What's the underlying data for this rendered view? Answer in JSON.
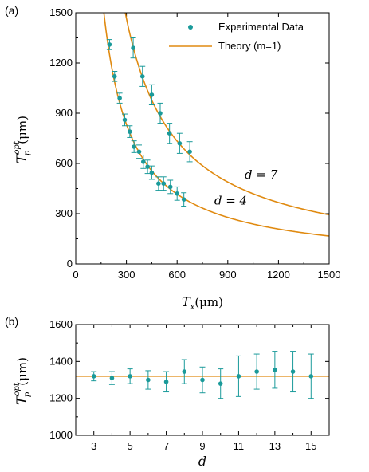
{
  "chart_data": [
    {
      "panel_label": "(a)",
      "type": "scatter",
      "xlabel_main": "T",
      "xlabel_sub": "x",
      "xlabel_unit": "(μm)",
      "ylabel_main": "T",
      "ylabel_sub": "p",
      "ylabel_sup": "opt",
      "ylabel_unit": "(μm)",
      "xlim": [
        0,
        1500
      ],
      "ylim": [
        0,
        1500
      ],
      "xticks": [
        "0",
        "300",
        "600",
        "900",
        "1200",
        "1500"
      ],
      "yticks": [
        "0",
        "300",
        "600",
        "900",
        "1200",
        "1500"
      ],
      "legend_position": "top-right",
      "legend": {
        "data_label": "Experimental  Data",
        "theory_label": "Theory (m=1)"
      },
      "colors": {
        "data": "#1a9a9a",
        "theory": "#e08a10"
      },
      "annotations": [
        {
          "text": "d = 7",
          "x": 1000,
          "y": 510
        },
        {
          "text": "d = 4",
          "x": 820,
          "y": 355
        }
      ],
      "series": [
        {
          "name": "d = 4",
          "theory_constant": 250000,
          "points": [
            {
              "x": 200,
              "y": 1310,
              "err": 30
            },
            {
              "x": 230,
              "y": 1120,
              "err": 30
            },
            {
              "x": 260,
              "y": 990,
              "err": 30
            },
            {
              "x": 290,
              "y": 860,
              "err": 35
            },
            {
              "x": 320,
              "y": 790,
              "err": 35
            },
            {
              "x": 345,
              "y": 700,
              "err": 35
            },
            {
              "x": 375,
              "y": 670,
              "err": 40
            },
            {
              "x": 400,
              "y": 610,
              "err": 40
            },
            {
              "x": 425,
              "y": 580,
              "err": 40
            },
            {
              "x": 450,
              "y": 545,
              "err": 40
            },
            {
              "x": 490,
              "y": 480,
              "err": 40
            },
            {
              "x": 520,
              "y": 480,
              "err": 40
            },
            {
              "x": 560,
              "y": 460,
              "err": 40
            },
            {
              "x": 600,
              "y": 420,
              "err": 40
            },
            {
              "x": 640,
              "y": 385,
              "err": 40
            }
          ]
        },
        {
          "name": "d = 7",
          "theory_constant": 440000,
          "points": [
            {
              "x": 340,
              "y": 1290,
              "err": 60
            },
            {
              "x": 395,
              "y": 1120,
              "err": 60
            },
            {
              "x": 450,
              "y": 1010,
              "err": 60
            },
            {
              "x": 500,
              "y": 900,
              "err": 60
            },
            {
              "x": 555,
              "y": 780,
              "err": 60
            },
            {
              "x": 615,
              "y": 720,
              "err": 60
            },
            {
              "x": 675,
              "y": 670,
              "err": 60
            }
          ]
        }
      ]
    },
    {
      "panel_label": "(b)",
      "type": "scatter",
      "xlabel": "d",
      "ylabel_main": "T",
      "ylabel_sub": "p",
      "ylabel_sup": "opt",
      "ylabel_unit": "(μm)",
      "xlim": [
        2,
        16
      ],
      "ylim": [
        1000,
        1600
      ],
      "xticks": [
        "3",
        "5",
        "7",
        "9",
        "11",
        "13",
        "15"
      ],
      "xtick_values": [
        3,
        5,
        7,
        9,
        11,
        13,
        15
      ],
      "yticks": [
        "1000",
        "1200",
        "1400",
        "1600"
      ],
      "ytick_values": [
        1000,
        1200,
        1400,
        1600
      ],
      "reference_line": 1320,
      "colors": {
        "data": "#1a9a9a",
        "theory": "#e08a10"
      },
      "points": [
        {
          "x": 3,
          "y": 1320,
          "err": 25
        },
        {
          "x": 4,
          "y": 1310,
          "err": 35
        },
        {
          "x": 5,
          "y": 1320,
          "err": 40
        },
        {
          "x": 6,
          "y": 1300,
          "err": 50
        },
        {
          "x": 7,
          "y": 1290,
          "err": 55
        },
        {
          "x": 8,
          "y": 1345,
          "err": 65
        },
        {
          "x": 9,
          "y": 1300,
          "err": 70
        },
        {
          "x": 10,
          "y": 1280,
          "err": 80
        },
        {
          "x": 11,
          "y": 1320,
          "err": 110
        },
        {
          "x": 12,
          "y": 1345,
          "err": 95
        },
        {
          "x": 13,
          "y": 1355,
          "err": 100
        },
        {
          "x": 14,
          "y": 1345,
          "err": 110
        },
        {
          "x": 15,
          "y": 1320,
          "err": 120
        }
      ]
    }
  ]
}
